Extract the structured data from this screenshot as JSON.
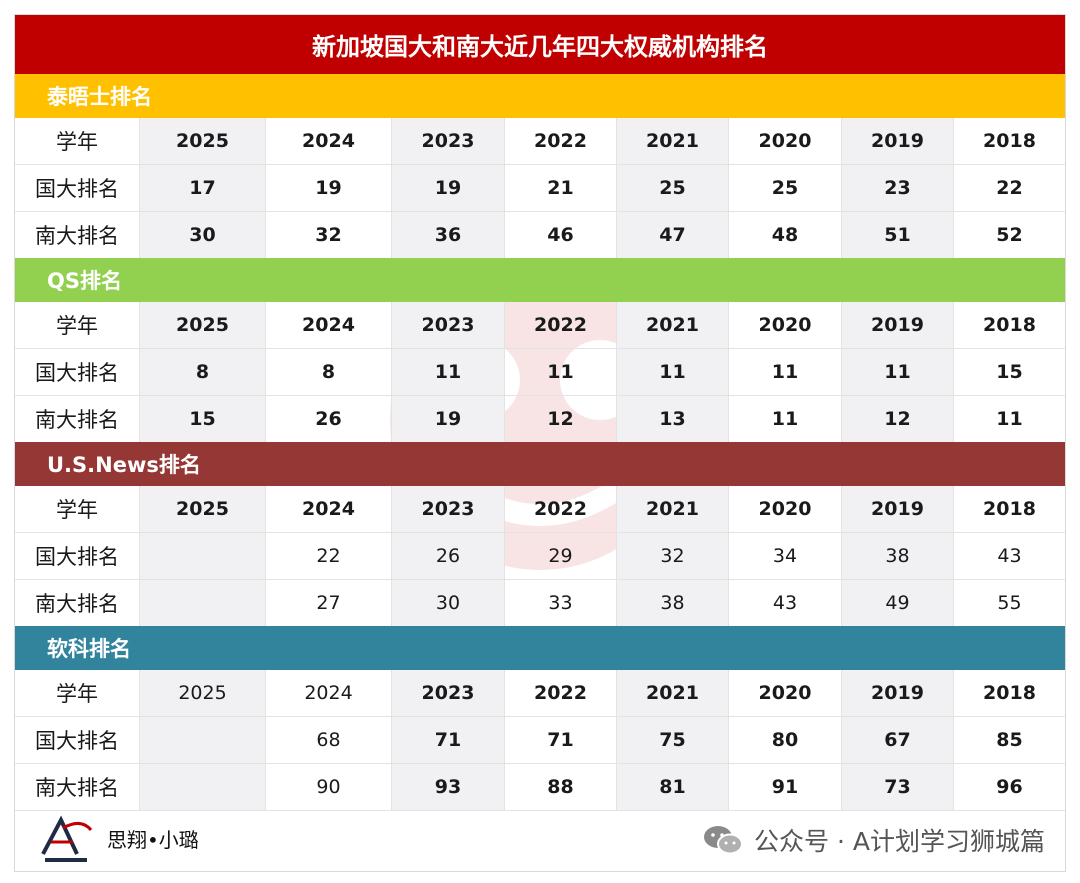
{
  "title": "新加坡国大和南大近几年四大权威机构排名",
  "row_labels": {
    "year": "学年",
    "nus": "国大排名",
    "ntu": "南大排名"
  },
  "sections": [
    {
      "name": "泰晤士排名",
      "color": "#ffc000",
      "years": [
        "2025",
        "2024",
        "2023",
        "2022",
        "2021",
        "2020",
        "2019",
        "2018"
      ],
      "nus": [
        "17",
        "19",
        "19",
        "21",
        "25",
        "25",
        "23",
        "22"
      ],
      "ntu": [
        "30",
        "32",
        "36",
        "46",
        "47",
        "48",
        "51",
        "52"
      ]
    },
    {
      "name": "QS排名",
      "color": "#92d050",
      "years": [
        "2025",
        "2024",
        "2023",
        "2022",
        "2021",
        "2020",
        "2019",
        "2018"
      ],
      "nus": [
        "8",
        "8",
        "11",
        "11",
        "11",
        "11",
        "11",
        "15"
      ],
      "ntu": [
        "15",
        "26",
        "19",
        "12",
        "13",
        "11",
        "12",
        "11"
      ]
    },
    {
      "name": "U.S.News排名",
      "color": "#953735",
      "years": [
        "2025",
        "2024",
        "2023",
        "2022",
        "2021",
        "2020",
        "2019",
        "2018"
      ],
      "nus": [
        "",
        "22",
        "26",
        "29",
        "32",
        "34",
        "38",
        "43"
      ],
      "ntu": [
        "",
        "27",
        "30",
        "33",
        "38",
        "43",
        "49",
        "55"
      ]
    },
    {
      "name": "软科排名",
      "color": "#31849b",
      "years": [
        "2025",
        "2024",
        "2023",
        "2022",
        "2021",
        "2020",
        "2019",
        "2018"
      ],
      "nus": [
        "",
        "68",
        "71",
        "71",
        "75",
        "80",
        "67",
        "85"
      ],
      "ntu": [
        "",
        "90",
        "93",
        "88",
        "81",
        "91",
        "73",
        "96"
      ]
    }
  ],
  "footer": {
    "brand": "思翔•小璐",
    "wechat": "公众号 · A计划学习狮城篇",
    "logo_icon": "lion-a-logo-icon",
    "wechat_icon": "wechat-icon"
  }
}
